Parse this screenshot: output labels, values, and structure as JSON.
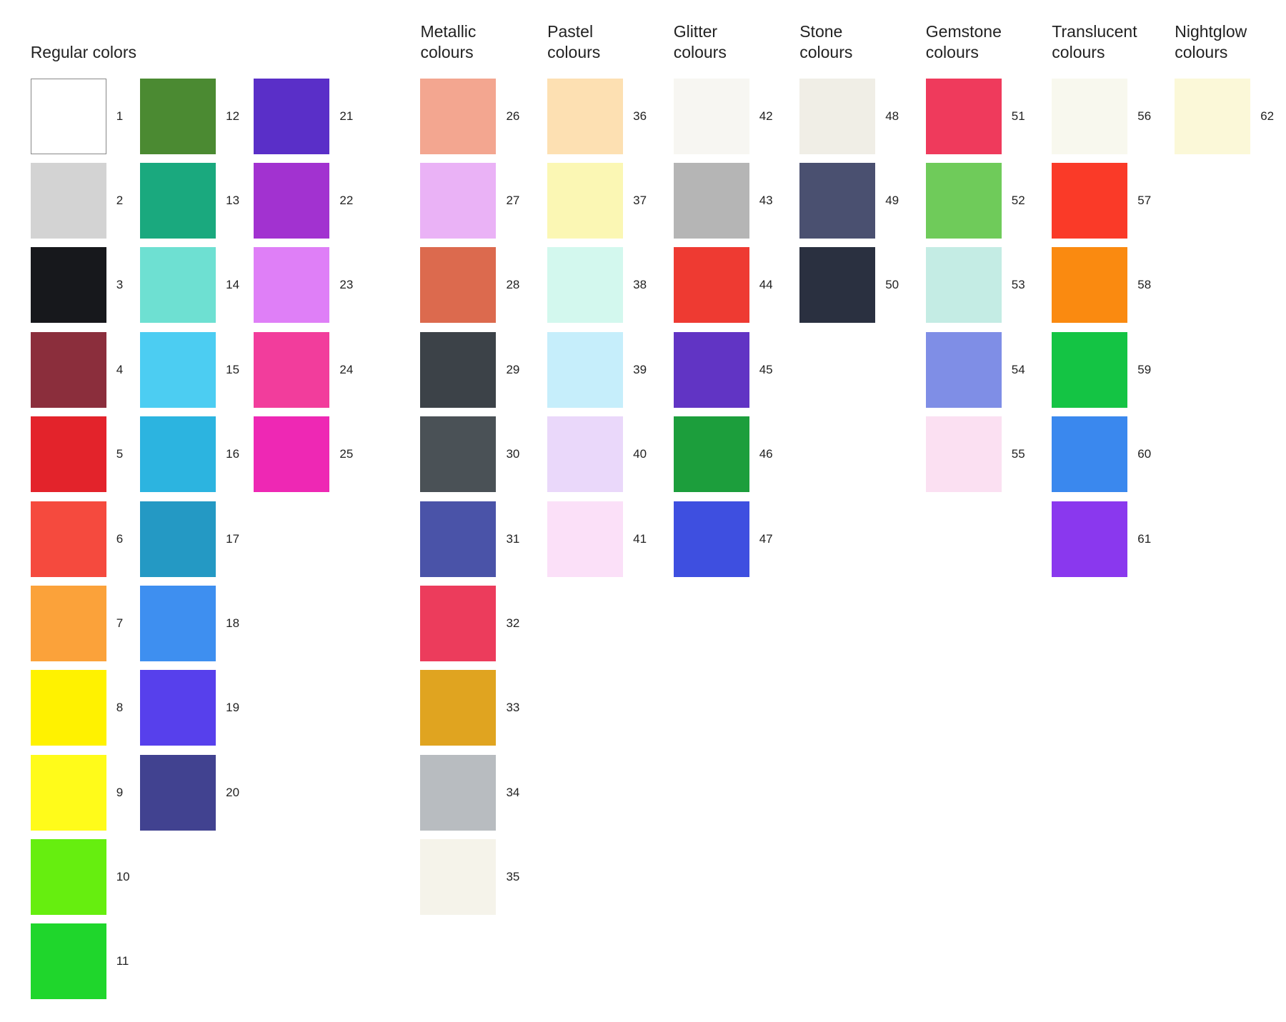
{
  "groups": [
    {
      "title": "Regular colors",
      "columns": [
        [
          {
            "label": "1",
            "color": "#ffffff"
          },
          {
            "label": "2",
            "color": "#d3d3d3"
          },
          {
            "label": "3",
            "color": "#17181c"
          },
          {
            "label": "4",
            "color": "#8b2e3c"
          },
          {
            "label": "5",
            "color": "#e3232b"
          },
          {
            "label": "6",
            "color": "#f54a3e"
          },
          {
            "label": "7",
            "color": "#fba23a"
          },
          {
            "label": "8",
            "color": "#fff200"
          },
          {
            "label": "9",
            "color": "#fffb1a"
          },
          {
            "label": "10",
            "color": "#66ee0f"
          },
          {
            "label": "11",
            "color": "#1fd62c"
          }
        ],
        [
          {
            "label": "12",
            "color": "#4b8a32"
          },
          {
            "label": "13",
            "color": "#1aa97e"
          },
          {
            "label": "14",
            "color": "#6ee0d2"
          },
          {
            "label": "15",
            "color": "#4ccdf2"
          },
          {
            "label": "16",
            "color": "#2cb4e0"
          },
          {
            "label": "17",
            "color": "#2499c4"
          },
          {
            "label": "18",
            "color": "#3e8ff0"
          },
          {
            "label": "19",
            "color": "#5740ec"
          },
          {
            "label": "20",
            "color": "#414290"
          }
        ],
        [
          {
            "label": "21",
            "color": "#5a2fc8"
          },
          {
            "label": "22",
            "color": "#a232d0"
          },
          {
            "label": "23",
            "color": "#df7ff7"
          },
          {
            "label": "24",
            "color": "#f23d9c"
          },
          {
            "label": "25",
            "color": "#ee28b4"
          }
        ]
      ]
    },
    {
      "title": "Metallic colours",
      "columns": [
        [
          {
            "label": "26",
            "color": "#f3a690"
          },
          {
            "label": "27",
            "color": "#eab2f6"
          },
          {
            "label": "28",
            "color": "#dc6a4e"
          },
          {
            "label": "29",
            "color": "#3c4248"
          },
          {
            "label": "30",
            "color": "#4a5156"
          },
          {
            "label": "31",
            "color": "#4a53a8"
          },
          {
            "label": "32",
            "color": "#ec3c5c"
          },
          {
            "label": "33",
            "color": "#e0a420"
          },
          {
            "label": "34",
            "color": "#b8bcc0"
          },
          {
            "label": "35",
            "color": "#f5f3ea"
          }
        ]
      ]
    },
    {
      "title": "Pastel colours",
      "columns": [
        [
          {
            "label": "36",
            "color": "#fde0b2"
          },
          {
            "label": "37",
            "color": "#fbf7b4"
          },
          {
            "label": "38",
            "color": "#d3f8ee"
          },
          {
            "label": "39",
            "color": "#c6eefb"
          },
          {
            "label": "40",
            "color": "#ead8fa"
          },
          {
            "label": "41",
            "color": "#fbe0f8"
          }
        ]
      ]
    },
    {
      "title": "Glitter colours",
      "columns": [
        [
          {
            "label": "42",
            "color": "#f7f6f2"
          },
          {
            "label": "43",
            "color": "#b5b5b5"
          },
          {
            "label": "44",
            "color": "#ee3a32"
          },
          {
            "label": "45",
            "color": "#6134c4"
          },
          {
            "label": "46",
            "color": "#1c9e3c"
          },
          {
            "label": "47",
            "color": "#3e4fe0"
          }
        ]
      ]
    },
    {
      "title": "Stone colours",
      "columns": [
        [
          {
            "label": "48",
            "color": "#f0eee6"
          },
          {
            "label": "49",
            "color": "#4a5070"
          },
          {
            "label": "50",
            "color": "#2a3040"
          }
        ]
      ]
    },
    {
      "title": "Gemstone colours",
      "columns": [
        [
          {
            "label": "51",
            "color": "#ef3a5c"
          },
          {
            "label": "52",
            "color": "#6fcb5a"
          },
          {
            "label": "53",
            "color": "#c4ece4"
          },
          {
            "label": "54",
            "color": "#7f8ee6"
          },
          {
            "label": "55",
            "color": "#fbe0f2"
          }
        ]
      ]
    },
    {
      "title": "Translucent colours",
      "columns": [
        [
          {
            "label": "56",
            "color": "#f8f8ee"
          },
          {
            "label": "57",
            "color": "#fa3a28"
          },
          {
            "label": "58",
            "color": "#fa8a10"
          },
          {
            "label": "59",
            "color": "#14c444"
          },
          {
            "label": "60",
            "color": "#3a88ee"
          },
          {
            "label": "61",
            "color": "#8a38ee"
          }
        ]
      ]
    },
    {
      "title": "Nightglow colours",
      "columns": [
        [
          {
            "label": "62",
            "color": "#fbf8d8"
          }
        ]
      ]
    }
  ]
}
